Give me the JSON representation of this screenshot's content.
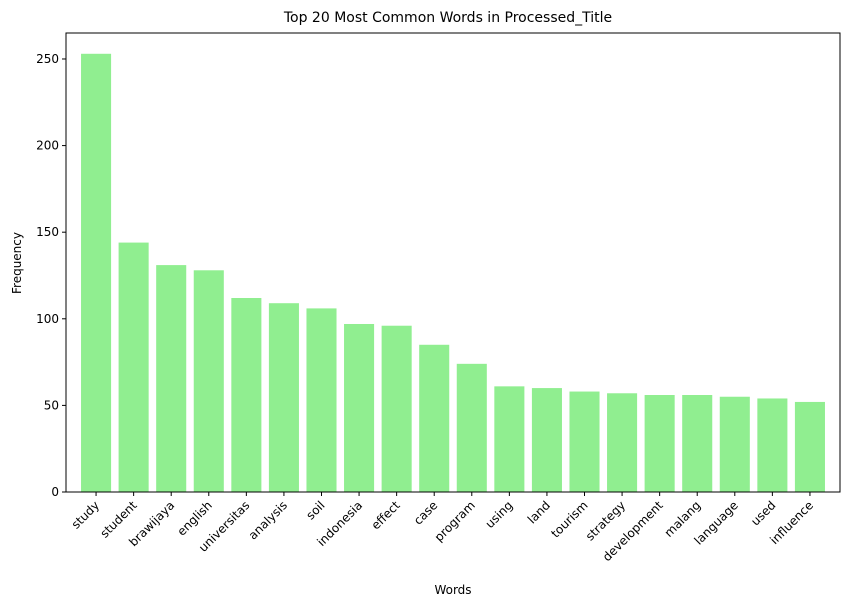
{
  "chart_data": {
    "type": "bar",
    "title": "Top 20 Most Common Words in Processed_Title",
    "xlabel": "Words",
    "ylabel": "Frequency",
    "categories": [
      "study",
      "student",
      "brawijaya",
      "english",
      "universitas",
      "analysis",
      "soil",
      "indonesia",
      "effect",
      "case",
      "program",
      "using",
      "land",
      "tourism",
      "strategy",
      "development",
      "malang",
      "language",
      "used",
      "influence"
    ],
    "values": [
      253,
      144,
      131,
      128,
      112,
      109,
      106,
      97,
      96,
      85,
      74,
      61,
      60,
      58,
      57,
      56,
      56,
      55,
      54,
      52
    ],
    "ylim": [
      0,
      265
    ],
    "yticks": [
      0,
      50,
      100,
      150,
      200,
      250
    ],
    "bar_color": "#90ee90",
    "grid": false,
    "legend": "none"
  }
}
